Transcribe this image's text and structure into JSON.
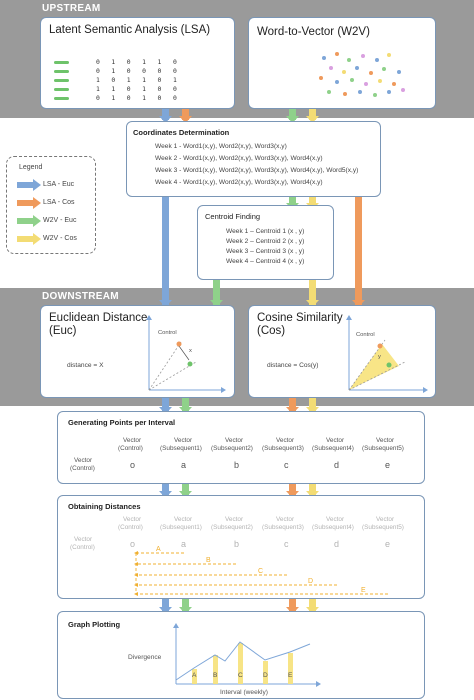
{
  "colors": {
    "lsa_euc": "#7ea6d8",
    "lsa_cos": "#ef9a5c",
    "w2v_euc": "#8fd18a",
    "w2v_cos": "#f3dc74",
    "band": "#9a9a9a",
    "border": "#7a96b6"
  },
  "bands": {
    "upstream": "UPSTREAM",
    "downstream": "DOWNSTREAM"
  },
  "lsa": {
    "title": "Latent Semantic Analysis (LSA)",
    "matrix": [
      "0   1   0   1   1   0",
      "0   1   0   0   0   0",
      "1   0   1   1   0   1",
      "1   1   0   1   0   0",
      "0   1   0   1   0   0"
    ]
  },
  "w2v": {
    "title": "Word-to-Vector (W2V)"
  },
  "legend": {
    "title": "Legend",
    "items": [
      {
        "label": "LSA - Euc"
      },
      {
        "label": "LSA - Cos"
      },
      {
        "label": "W2V - Euc"
      },
      {
        "label": "W2V - Cos"
      }
    ]
  },
  "coordinates": {
    "title": "Coordinates Determination",
    "lines": [
      "Week 1 - Word1(x,y), Word2(x,y), Word3(x,y)",
      "Week 2 - Word1(x,y), Word2(x,y), Word3(x,y), Word4(x,y)",
      "Week 3 - Word1(x,y), Word2(x,y), Word3(x,y), Word4(x,y), Word5(x,y)",
      "Week 4 - Word1(x,y), Word2(x,y), Word3(x,y), Word4(x,y)"
    ]
  },
  "centroid": {
    "title": "Centroid Finding",
    "lines": [
      "Week 1 – Centroid 1 (x , y)",
      "Week 2 – Centroid 2 (x , y)",
      "Week 3 – Centroid 3 (x , y)",
      "Week 4 – Centroid 4 (x , y)"
    ]
  },
  "euclidean": {
    "title_line1": "Euclidean Distance",
    "title_line2": "(Euc)",
    "control": "Control",
    "distance": "distance = X",
    "mark": "x"
  },
  "cosine": {
    "title_line1": "Cosine Similarity",
    "title_line2": "(Cos)",
    "control": "Control",
    "distance": "distance = Cos(y)",
    "mark": "y"
  },
  "generating": {
    "title": "Generating Points per Interval",
    "row_label_1": "Vector",
    "row_label_2": "(Control)",
    "columns": [
      {
        "l1": "Vector",
        "l2": "(Control)",
        "letter": "o"
      },
      {
        "l1": "Vector",
        "l2": "(Subsequent1)",
        "letter": "a"
      },
      {
        "l1": "Vector",
        "l2": "(Subsequent2)",
        "letter": "b"
      },
      {
        "l1": "Vector",
        "l2": "(Subsequent3)",
        "letter": "c"
      },
      {
        "l1": "Vector",
        "l2": "(Subsequent4)",
        "letter": "d"
      },
      {
        "l1": "Vector",
        "l2": "(Subsequent5)",
        "letter": "e"
      }
    ]
  },
  "obtaining": {
    "title": "Obtaining Distances",
    "distances": [
      "A",
      "B",
      "C",
      "D",
      "E"
    ]
  },
  "graph": {
    "title": "Graph Plotting",
    "ylabel": "Divergence",
    "xlabel": "Interval (weekly)",
    "points": [
      "A",
      "B",
      "C",
      "D",
      "E"
    ]
  }
}
